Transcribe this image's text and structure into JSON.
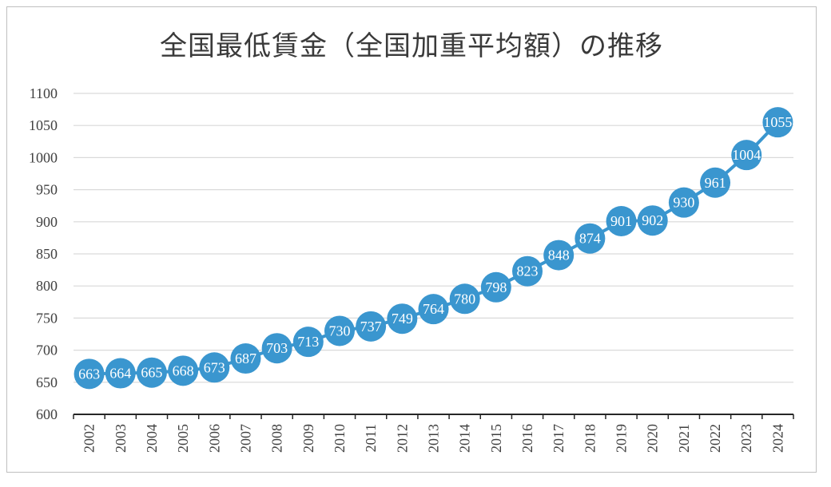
{
  "chart_data": {
    "type": "line",
    "title": "全国最低賃金（全国加重平均額）の推移",
    "xlabel": "",
    "ylabel": "",
    "categories": [
      "2002",
      "2003",
      "2004",
      "2005",
      "2006",
      "2007",
      "2008",
      "2009",
      "2010",
      "2011",
      "2012",
      "2013",
      "2014",
      "2015",
      "2016",
      "2017",
      "2018",
      "2019",
      "2020",
      "2021",
      "2022",
      "2023",
      "2024"
    ],
    "series": [
      {
        "values": [
          663,
          664,
          665,
          668,
          673,
          687,
          703,
          713,
          730,
          737,
          749,
          764,
          780,
          798,
          823,
          848,
          874,
          901,
          902,
          930,
          961,
          1004,
          1055
        ]
      }
    ],
    "ylim": [
      600,
      1100
    ],
    "yticks": [
      600,
      650,
      700,
      750,
      800,
      850,
      900,
      950,
      1000,
      1050,
      1100
    ],
    "grid": true,
    "legend": "none",
    "data_labels": true,
    "colors": {
      "series": "#3a96cf",
      "grid": "#d9d9d9",
      "axis": "#262626",
      "label": "#ffffff"
    }
  }
}
